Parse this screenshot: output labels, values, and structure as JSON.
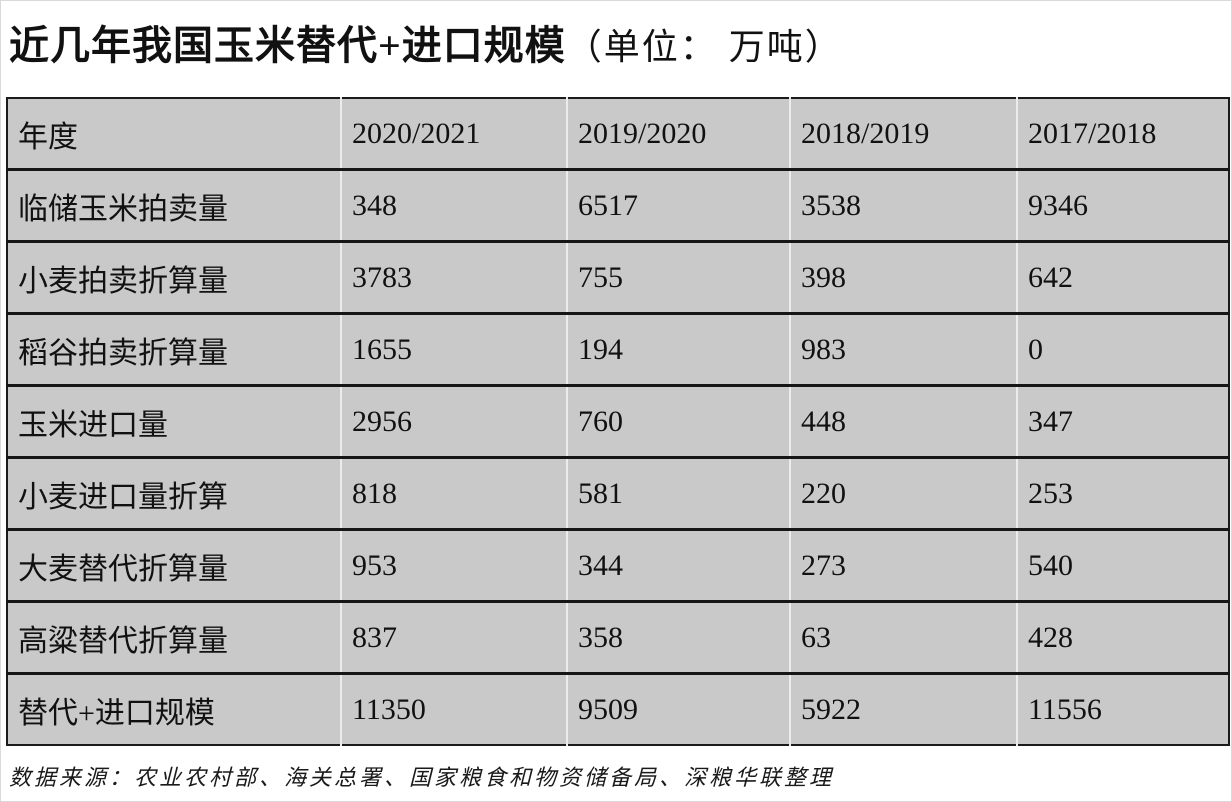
{
  "page": {
    "title": "近几年我国玉米替代+进口规模",
    "title_unit": "（单位： 万吨）",
    "source_note": "数据来源：农业农村部、海关总署、国家粮食和物资储备局、深粮华联整理"
  },
  "table": {
    "columns": [
      "年度",
      "2020/2021",
      "2019/2020",
      "2018/2019",
      "2017/2018"
    ],
    "rows": [
      {
        "label": "临储玉米拍卖量",
        "values": [
          "348",
          "6517",
          "3538",
          "9346"
        ]
      },
      {
        "label": "小麦拍卖折算量",
        "values": [
          "3783",
          "755",
          "398",
          "642"
        ]
      },
      {
        "label": "稻谷拍卖折算量",
        "values": [
          "1655",
          "194",
          "983",
          "0"
        ]
      },
      {
        "label": "玉米进口量",
        "values": [
          "2956",
          "760",
          "448",
          "347"
        ]
      },
      {
        "label": "小麦进口量折算",
        "values": [
          "818",
          "581",
          "220",
          "253"
        ]
      },
      {
        "label": "大麦替代折算量",
        "values": [
          "953",
          "344",
          "273",
          "540"
        ]
      },
      {
        "label": "高粱替代折算量",
        "values": [
          "837",
          "358",
          "63",
          "428"
        ]
      },
      {
        "label": "替代+进口规模",
        "values": [
          "11350",
          "9509",
          "5922",
          "11556"
        ]
      }
    ]
  },
  "colors": {
    "cell_background": "#c9c9c9",
    "row_divider": "#161616",
    "column_divider": "#ececec",
    "outer_border": "#1b1b1b",
    "text": "#111111",
    "page_background": "#ffffff"
  },
  "chart_data": {
    "type": "table",
    "title": "近几年我国玉米替代+进口规模（单位： 万吨）",
    "categories": [
      "2020/2021",
      "2019/2020",
      "2018/2019",
      "2017/2018"
    ],
    "row_header_label": "年度",
    "series": [
      {
        "name": "临储玉米拍卖量",
        "values": [
          348,
          6517,
          3538,
          9346
        ]
      },
      {
        "name": "小麦拍卖折算量",
        "values": [
          3783,
          755,
          398,
          642
        ]
      },
      {
        "name": "稻谷拍卖折算量",
        "values": [
          1655,
          194,
          983,
          0
        ]
      },
      {
        "name": "玉米进口量",
        "values": [
          2956,
          760,
          448,
          347
        ]
      },
      {
        "name": "小麦进口量折算",
        "values": [
          818,
          581,
          220,
          253
        ]
      },
      {
        "name": "大麦替代折算量",
        "values": [
          953,
          344,
          273,
          540
        ]
      },
      {
        "name": "高粱替代折算量",
        "values": [
          837,
          358,
          63,
          428
        ]
      },
      {
        "name": "替代+进口规模",
        "values": [
          11350,
          9509,
          5922,
          11556
        ]
      }
    ],
    "unit": "万吨",
    "source": "数据来源：农业农村部、海关总署、国家粮食和物资储备局、深粮华联整理"
  }
}
